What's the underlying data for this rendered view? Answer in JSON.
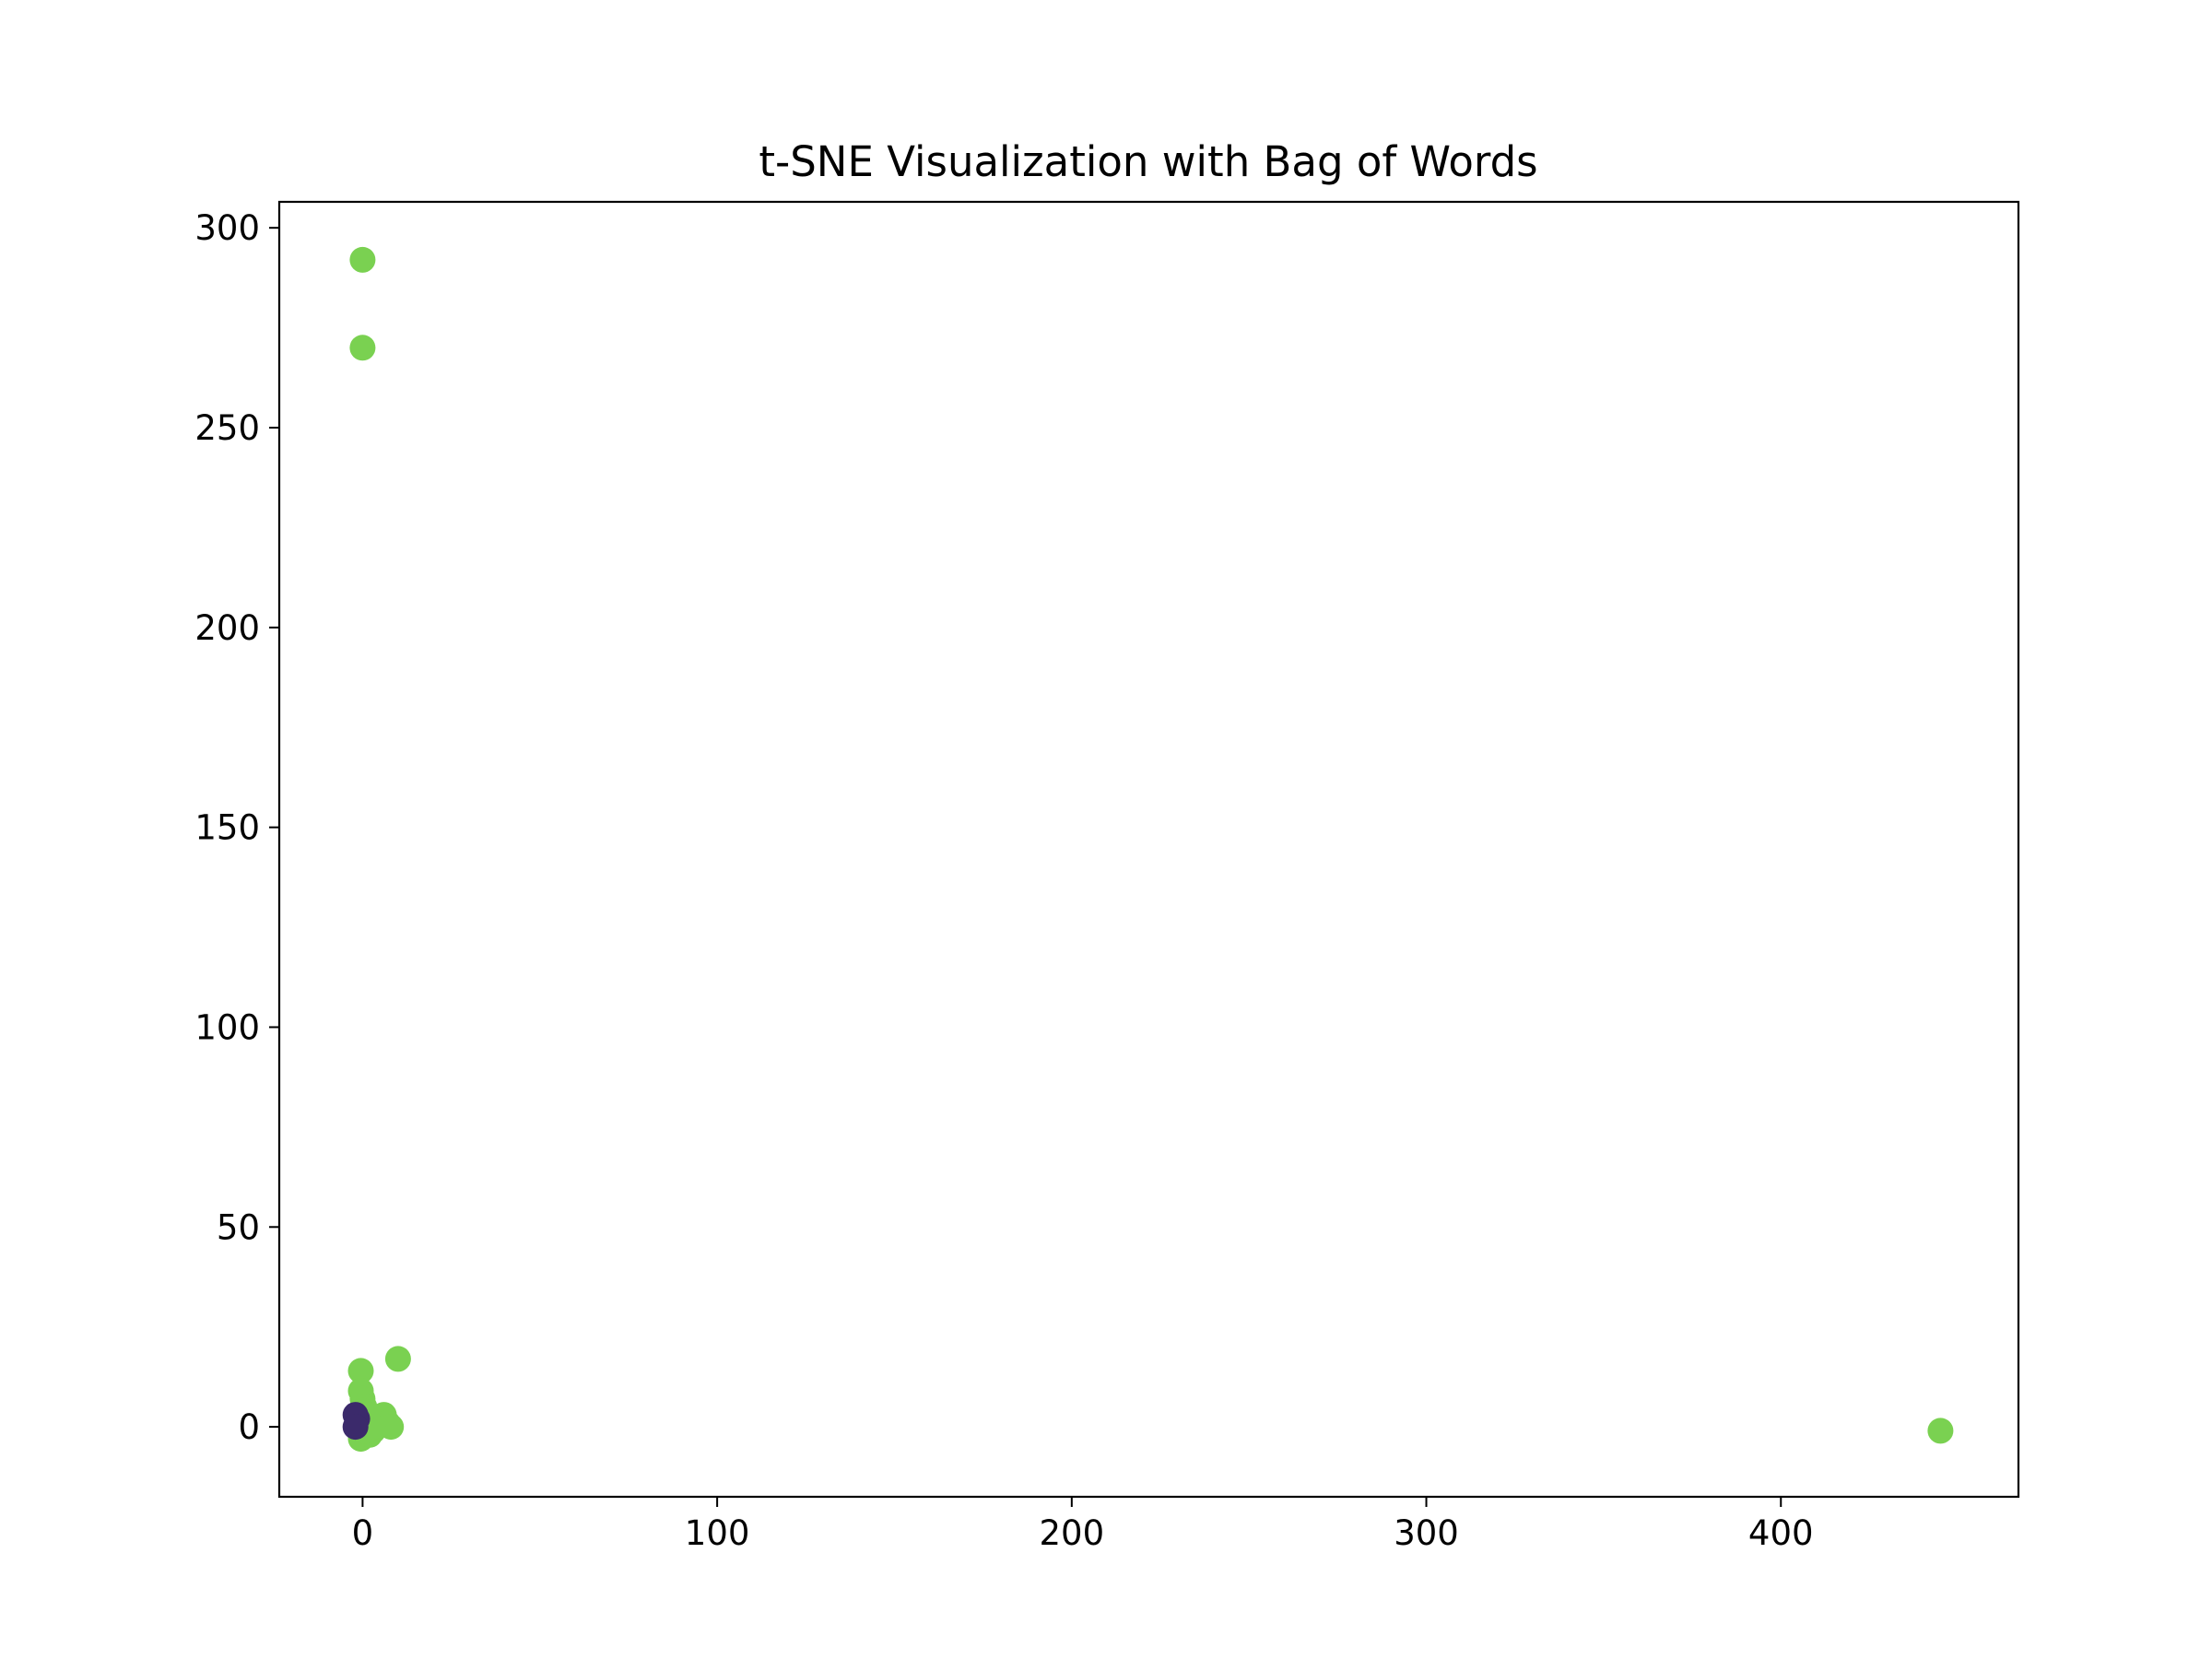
{
  "chart_data": {
    "type": "scatter",
    "title": "t-SNE Visualization with Bag of Words",
    "xlabel": "",
    "ylabel": "",
    "xlim": [
      -23.5,
      467
    ],
    "ylim": [
      -17.5,
      306.5
    ],
    "xticks": [
      0,
      100,
      200,
      300,
      400
    ],
    "yticks": [
      0,
      50,
      100,
      150,
      200,
      250,
      300
    ],
    "grid": false,
    "legend": "none",
    "colors": {
      "point": "#7ad151",
      "point_dark": "#3b2a6b",
      "axes": "#000000",
      "background": "#ffffff"
    },
    "series": [
      {
        "points": [
          [
            0,
            292
          ],
          [
            0,
            270
          ],
          [
            445,
            -1
          ],
          [
            10,
            17
          ],
          [
            -0.5,
            14
          ],
          [
            -0.5,
            9
          ],
          [
            0,
            7
          ],
          [
            0.5,
            5
          ],
          [
            0,
            4
          ],
          [
            -1,
            3
          ],
          [
            1,
            2
          ],
          [
            -1,
            1
          ],
          [
            0,
            0
          ],
          [
            1,
            0
          ],
          [
            -1,
            -1
          ],
          [
            0,
            -2
          ],
          [
            -0.5,
            -3
          ],
          [
            2,
            -2
          ],
          [
            3,
            -1
          ],
          [
            4,
            1
          ],
          [
            5,
            2
          ],
          [
            6,
            3
          ],
          [
            7,
            1
          ],
          [
            8,
            0
          ],
          [
            2,
            1
          ],
          [
            1,
            3
          ],
          [
            0.5,
            -1
          ],
          [
            3,
            0
          ]
        ]
      },
      {
        "color_key": "point_dark",
        "points": [
          [
            -2,
            3
          ],
          [
            -1.5,
            2
          ],
          [
            -2,
            0
          ]
        ]
      }
    ]
  }
}
